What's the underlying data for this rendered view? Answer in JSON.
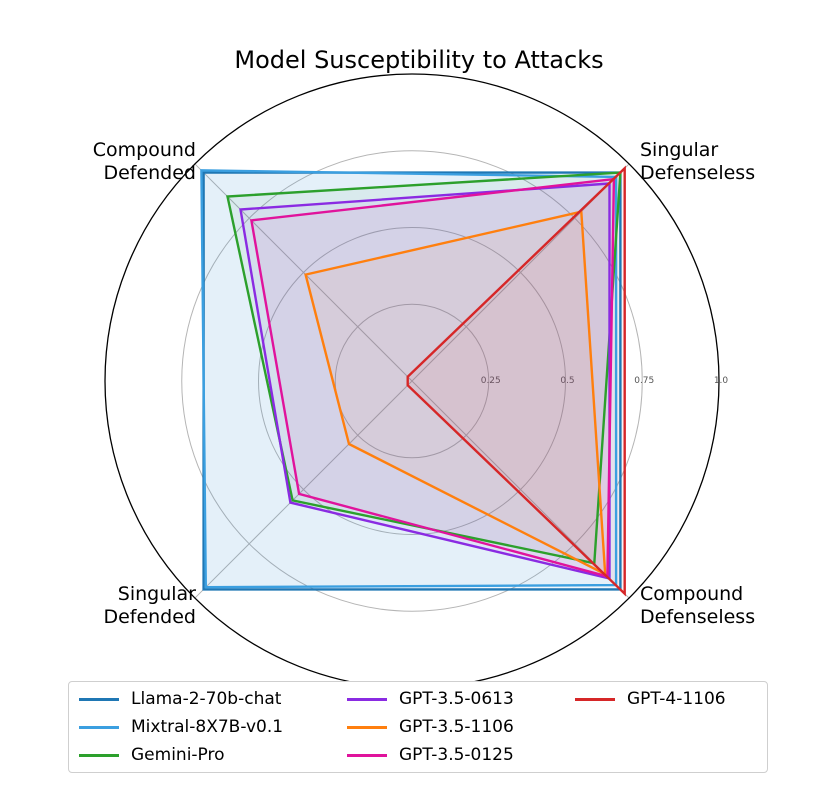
{
  "chart_data": {
    "type": "radar",
    "title": "Model Susceptibility to Attacks",
    "axes": [
      "Singular\nDefenseless",
      "Compound\nDefended",
      "Singular\nDefended",
      "Compound\nDefenseless"
    ],
    "rgrid": [
      0.25,
      0.5,
      0.75,
      1.0
    ],
    "rgrid_labels": [
      "0.25",
      "0.5",
      "0.75",
      "1.0"
    ],
    "rlim": [
      0,
      1.0
    ],
    "grid": true,
    "legend_position": "bottom",
    "series": [
      {
        "name": "Llama-2-70b-chat",
        "color": "#1f77b4",
        "values": [
          0.96,
          0.96,
          0.96,
          0.96
        ]
      },
      {
        "name": "Mixtral-8X7B-v0.1",
        "color": "#3b9fe0",
        "values": [
          0.94,
          0.97,
          0.95,
          0.94
        ]
      },
      {
        "name": "Gemini-Pro",
        "color": "#2ca02c",
        "values": [
          0.96,
          0.85,
          0.55,
          0.84
        ]
      },
      {
        "name": "GPT-3.5-0613",
        "color": "#8a2be2",
        "values": [
          0.91,
          0.79,
          0.56,
          0.91
        ]
      },
      {
        "name": "GPT-3.5-1106",
        "color": "#ff7f0e",
        "values": [
          0.78,
          0.49,
          0.29,
          0.89
        ]
      },
      {
        "name": "GPT-3.5-0125",
        "color": "#e0139c",
        "values": [
          0.93,
          0.74,
          0.52,
          0.9
        ]
      },
      {
        "name": "GPT-4-1106",
        "color": "#d62728",
        "values": [
          0.98,
          0.02,
          0.02,
          0.98
        ]
      }
    ],
    "fill": {
      "Mixtral-8X7B-v0.1": 0.07,
      "default": 0.06
    }
  }
}
